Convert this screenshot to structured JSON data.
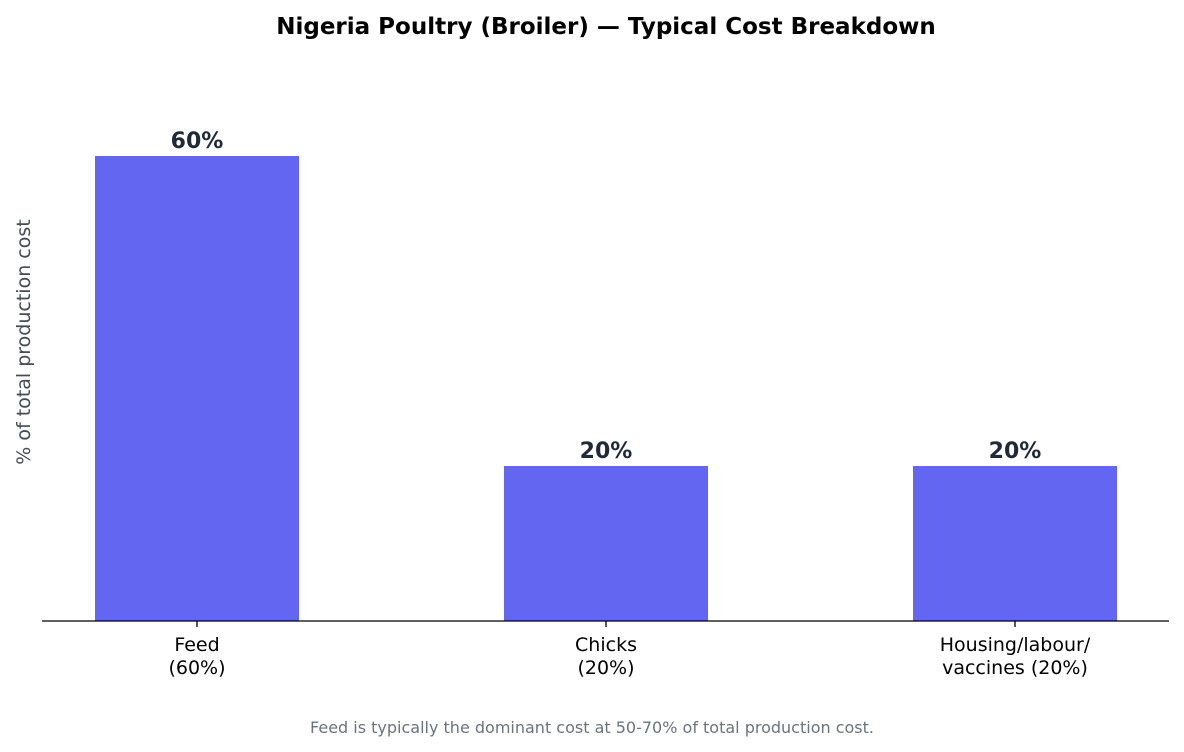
{
  "chart_data": {
    "type": "bar",
    "title": "Nigeria Poultry (Broiler) — Typical Cost Breakdown",
    "ylabel": "% of total production cost",
    "xlabel": "",
    "categories": [
      [
        "Feed",
        "(60%)"
      ],
      [
        "Chicks",
        "(20%)"
      ],
      [
        "Housing/labour/",
        "vaccines (20%)"
      ]
    ],
    "values": [
      60,
      20,
      20
    ],
    "data_labels": [
      "60%",
      "20%",
      "20%"
    ],
    "ylim": [
      0,
      70
    ],
    "bar_color": "#6366f1",
    "grid": false,
    "footnote": "Feed is typically the dominant cost at 50-70% of total production cost."
  }
}
